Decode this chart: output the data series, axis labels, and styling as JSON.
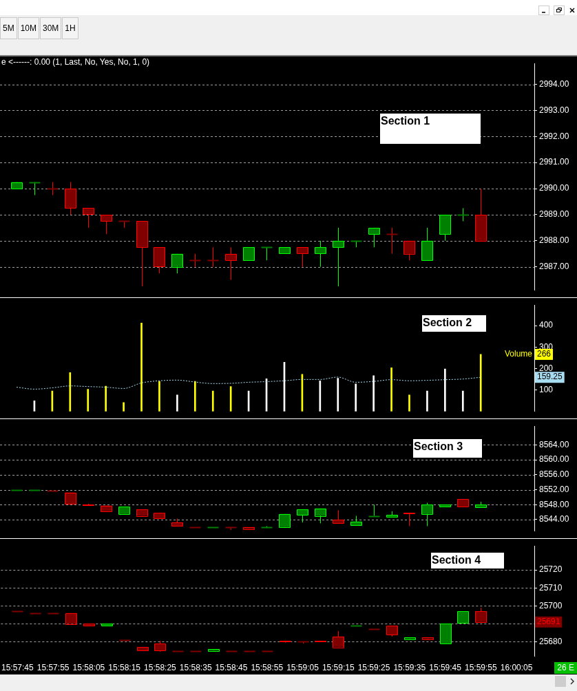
{
  "chart_data": [
    {
      "type": "other",
      "annotations": [
        "5M",
        "10M",
        "30M",
        "1H"
      ]
    },
    {
      "type": "candlestick",
      "title": "Section 1",
      "subtitle": "e <------: 0.00 (1, Last, No, Yes, No, 1, 0)",
      "categories": [
        null,
        null,
        null,
        null,
        null,
        null,
        null,
        null,
        null,
        null,
        null,
        null,
        null,
        null,
        null,
        null,
        null,
        null,
        null,
        null,
        null,
        null,
        null,
        null,
        null,
        null,
        null,
        null,
        null,
        null
      ],
      "ohlc": [
        [
          2990,
          2990.25,
          2990,
          2990.25
        ],
        [
          2990.25,
          2990.25,
          2989.75,
          2990.25
        ],
        [
          2990,
          2990.25,
          2989.75,
          2990
        ],
        [
          2990,
          2990.25,
          2989,
          2989.25
        ],
        [
          2989.25,
          2989.25,
          2988.5,
          2989
        ],
        [
          2989,
          2989,
          2988.25,
          2988.75
        ],
        [
          2988.75,
          2988.75,
          2988.5,
          2988.75
        ],
        [
          2988.75,
          2988.75,
          2986.25,
          2987.75
        ],
        [
          2987.75,
          2987.75,
          2986.75,
          2987
        ],
        [
          2987,
          2987.5,
          2986.75,
          2987.5
        ],
        [
          2987.25,
          2987.5,
          2987,
          2987.25
        ],
        [
          2987.25,
          2987.75,
          2987,
          2987.25
        ],
        [
          2987.5,
          2987.75,
          2986.5,
          2987.25
        ],
        [
          2987.25,
          2987.75,
          2987.25,
          2987.75
        ],
        [
          2987.75,
          2987.75,
          2987.25,
          2987.75
        ],
        [
          2987.5,
          2987.75,
          2987.5,
          2987.75
        ],
        [
          2987.75,
          2987.75,
          2987,
          2987.5
        ],
        [
          2987.5,
          2988,
          2987,
          2987.75
        ],
        [
          2987.75,
          2988.5,
          2986.25,
          2988
        ],
        [
          2988,
          2988,
          2987.75,
          2988
        ],
        [
          2988.25,
          2988.5,
          2987.75,
          2988.5
        ],
        [
          2988.25,
          2988.5,
          2987.5,
          2988.25
        ],
        [
          2988,
          2988,
          2987.25,
          2987.5
        ],
        [
          2987.25,
          2988.5,
          2987.25,
          2988
        ],
        [
          2988.25,
          2989,
          2988,
          2989
        ],
        [
          2989,
          2989.25,
          2988.75,
          2989
        ],
        [
          2989,
          2990,
          2988,
          2988
        ],
        null,
        null,
        null
      ],
      "colors": [
        "#008000",
        "#008000",
        "#800000",
        "#800000",
        "#800000",
        "#800000",
        "#800000",
        "#800000",
        "#800000",
        "#008000",
        "#800000",
        "#800000",
        "#800000",
        "#008000",
        "#008000",
        "#008000",
        "#800000",
        "#008000",
        "#008000",
        "#008000",
        "#008000",
        "#800000",
        "#800000",
        "#008000",
        "#008000",
        "#008000",
        "#800000",
        null,
        null,
        null
      ],
      "ylim": [
        2986.1,
        2994.8
      ],
      "yticks": [
        {
          "value": 2987,
          "label": "2987.00"
        },
        {
          "value": 2988,
          "label": "2988.00"
        },
        {
          "value": 2989,
          "label": "2989.00"
        },
        {
          "value": 2990,
          "label": "2990.00"
        },
        {
          "value": 2991,
          "label": "2991.00"
        },
        {
          "value": 2992,
          "label": "2992.00"
        },
        {
          "value": 2993,
          "label": "2993.00"
        },
        {
          "value": 2994,
          "label": "2994.00"
        }
      ],
      "grid": "y",
      "tick_labels": "y"
    },
    {
      "type": "bar",
      "title": "Section 2",
      "annotations": [
        "266",
        "159.25"
      ],
      "categories": [
        null,
        null,
        null,
        null,
        null,
        null,
        null,
        null,
        null,
        null,
        null,
        null,
        null,
        null,
        null,
        null,
        null,
        null,
        null,
        null,
        null,
        null,
        null,
        null,
        null,
        null,
        null,
        null,
        null,
        null
      ],
      "series": [
        {
          "name": "Volume",
          "colors": [
            "#ffffff",
            "#ffffff",
            "#ffff00",
            "#ffff00",
            "#ffff00",
            "#ffff00",
            "#ffff00",
            "#ffff00",
            "#ffff00",
            "#ffffff",
            "#ffff00",
            "#ffff00",
            "#ffff00",
            "#ffffff",
            "#ffffff",
            "#ffffff",
            "#ffff00",
            "#ffffff",
            "#ffffff",
            "#ffffff",
            "#ffffff",
            "#ffff00",
            "#ffff00",
            "#ffffff",
            "#ffffff",
            "#ffffff",
            "#ffff00",
            "#ffffff",
            "#ffffff",
            "#ffffff"
          ],
          "values": [
            null,
            50,
            95,
            181,
            103,
            118,
            42,
            412,
            140,
            77,
            140,
            95,
            116,
            95,
            152,
            229,
            173,
            143,
            155,
            128,
            167,
            204,
            77,
            95,
            198,
            95,
            266,
            null,
            null,
            null
          ]
        },
        {
          "type": "line",
          "color": "#a8dcf0",
          "line_style": "dashed",
          "values": [
            113,
            104,
            110,
            119,
            116,
            113,
            107,
            133,
            143,
            146,
            137,
            130,
            131,
            136,
            139,
            143,
            149,
            149,
            160,
            136,
            140,
            148,
            143,
            145,
            148,
            151,
            159.25,
            null,
            null,
            null
          ]
        }
      ],
      "marker": "none",
      "ylim": [
        0,
        496
      ],
      "yticks": [
        100,
        200,
        300,
        400
      ],
      "grid": false,
      "tick_labels": "y"
    },
    {
      "type": "candlestick",
      "title": "Section 3",
      "categories": [
        null,
        null,
        null,
        null,
        null,
        null,
        null,
        null,
        null,
        null,
        null,
        null,
        null,
        null,
        null,
        null,
        null,
        null,
        null,
        null,
        null,
        null,
        null,
        null,
        null,
        null,
        null,
        null,
        null,
        null
      ],
      "ohlc": [
        [
          8552,
          8552,
          8552,
          8552
        ],
        [
          8552,
          8552,
          8552,
          8552
        ],
        [
          8551.75,
          8551.75,
          8551.75,
          8551.75
        ],
        [
          8551.25,
          8551.25,
          8548.25,
          8548.25
        ],
        [
          8548,
          8548.25,
          8547.75,
          8547.75
        ],
        [
          8547.75,
          8547.75,
          8546.25,
          8546.25
        ],
        [
          8545.5,
          8547.5,
          8545.5,
          8547.5
        ],
        [
          8546.75,
          8546.75,
          8545,
          8545
        ],
        [
          8545.75,
          8545.75,
          8544.25,
          8544.25
        ],
        [
          8543.25,
          8544.25,
          8542.25,
          8542.25
        ],
        [
          8542,
          8542,
          8542,
          8542
        ],
        [
          8542,
          8542,
          8542,
          8542
        ],
        [
          8542,
          8542,
          8541.25,
          8542
        ],
        [
          8542,
          8542,
          8541.5,
          8541.5
        ],
        [
          8542,
          8542.25,
          8541.75,
          8542
        ],
        [
          8542,
          8545.5,
          8542,
          8545.5
        ],
        [
          8545.25,
          8546.75,
          8543.25,
          8546.75
        ],
        [
          8545,
          8547,
          8543,
          8547
        ],
        [
          8544,
          8546.5,
          8543,
          8543
        ],
        [
          8542.5,
          8545,
          8542.5,
          8543.5
        ],
        [
          8545,
          8548,
          8545,
          8545
        ],
        [
          8544.75,
          8546.25,
          8544.75,
          8545.25
        ],
        [
          8545.75,
          8545.75,
          8542.25,
          8545.5
        ],
        [
          8545.5,
          8548.5,
          8542.25,
          8548
        ],
        [
          8547.5,
          8548,
          8547.5,
          8548
        ],
        [
          8549.5,
          8549.5,
          8547.5,
          8547.5
        ],
        [
          8547.25,
          8548.75,
          8547.25,
          8548
        ],
        null,
        null,
        null
      ],
      "colors": [
        "#008000",
        "#008000",
        "#800000",
        "#800000",
        "#800000",
        "#800000",
        "#008000",
        "#800000",
        "#800000",
        "#800000",
        "#800000",
        "#008000",
        "#800000",
        "#800000",
        "#008000",
        "#008000",
        "#008000",
        "#008000",
        "#800000",
        "#008000",
        "#008000",
        "#008000",
        "#800000",
        "#008000",
        "#008000",
        "#800000",
        "#008000",
        null,
        null,
        null
      ],
      "ylim": [
        8540.9,
        8569
      ],
      "yticks": [
        {
          "value": 8544,
          "label": "8544.00"
        },
        {
          "value": 8548,
          "label": "8548.00"
        },
        {
          "value": 8552,
          "label": "8552.00"
        },
        {
          "value": 8556,
          "label": "8556.00"
        },
        {
          "value": 8560,
          "label": "8560.00"
        },
        {
          "value": 8564,
          "label": "8564.00"
        }
      ],
      "grid": "y",
      "tick_labels": "y"
    },
    {
      "type": "candlestick",
      "title": "Section 4",
      "annotations": [
        "25691",
        "26 E"
      ],
      "categories": [
        "15:57:45",
        null,
        "15:57:55",
        null,
        "15:58:05",
        null,
        "15:58:15",
        null,
        "15:58:25",
        null,
        "15:58:35",
        null,
        "15:58:45",
        null,
        "15:58:55",
        null,
        "15:59:05",
        null,
        "15:59:15",
        null,
        "15:59:25",
        null,
        "15:59:35",
        null,
        "15:59:45",
        null,
        "15:59:55",
        null,
        "16:00:05",
        null
      ],
      "ohlc": [
        [
          25697,
          25697,
          25697,
          25697
        ],
        [
          25696,
          25696,
          25696,
          25696
        ],
        [
          25696,
          25696,
          25696,
          25696
        ],
        [
          25696,
          25696,
          25690,
          25690
        ],
        [
          25690,
          25690,
          25689,
          25689
        ],
        [
          25689,
          25690,
          25689,
          25690
        ],
        [
          25681,
          25681,
          25681,
          25681
        ],
        [
          25677,
          25677,
          25675,
          25675
        ],
        [
          25679,
          25680.5,
          25674.5,
          25675
        ],
        [
          25675,
          25675,
          25675,
          25675
        ],
        [
          25675,
          25675,
          25675,
          25675
        ],
        [
          25675,
          25676,
          25675,
          25676
        ],
        [
          25675,
          25675,
          25675,
          25675
        ],
        [
          25675,
          25675,
          25675,
          25675
        ],
        [
          25675,
          25675,
          25675,
          25675
        ],
        [
          25680.5,
          25680.5,
          25679.5,
          25680
        ],
        [
          25680,
          25680,
          25679,
          25680
        ],
        [
          25680.5,
          25680.5,
          25680,
          25680
        ],
        [
          25683,
          25686,
          25677,
          25677
        ],
        [
          25689,
          25689,
          25689,
          25689
        ],
        [
          25687,
          25687,
          25687,
          25687
        ],
        [
          25689,
          25689,
          25683,
          25684
        ],
        [
          25681.5,
          25682.5,
          25681.5,
          25682.5
        ],
        [
          25682.5,
          25682.5,
          25681.5,
          25681.5
        ],
        [
          25679,
          25690,
          25679,
          25690
        ],
        [
          25690.5,
          25697,
          25690.5,
          25697
        ],
        [
          25697,
          25699,
          25691,
          25691
        ],
        null,
        null,
        null
      ],
      "colors": [
        "#800000",
        "#800000",
        "#800000",
        "#800000",
        "#800000",
        "#008000",
        "#800000",
        "#800000",
        "#800000",
        "#800000",
        "#800000",
        "#008000",
        "#800000",
        "#800000",
        "#800000",
        "#800000",
        "#800000",
        "#800000",
        "#800000",
        "#008000",
        "#800000",
        "#800000",
        "#008000",
        "#800000",
        "#008000",
        "#008000",
        "#800000",
        null,
        null,
        null
      ],
      "ylim": [
        25671.9,
        25733.4
      ],
      "yticks": [
        25680,
        {
          "value": 25690,
          "label": null
        },
        25700,
        25710,
        25720
      ],
      "grid": "y"
    }
  ]
}
